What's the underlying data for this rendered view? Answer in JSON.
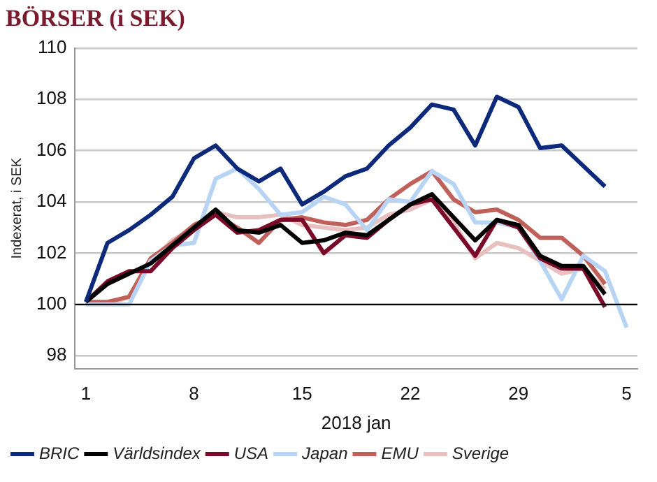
{
  "chart_data": {
    "type": "line",
    "title": "BÖRSER (i SEK)",
    "xlabel": "2018 jan",
    "ylabel": "Indexerat, i SEK",
    "categories": [
      "1",
      null,
      null,
      null,
      null,
      "8",
      null,
      null,
      null,
      null,
      "15",
      null,
      null,
      null,
      null,
      "22",
      null,
      null,
      null,
      null,
      "29",
      null,
      null,
      null,
      null,
      "5"
    ],
    "series": [
      {
        "name": "BRIC",
        "color": "#0d2a7a",
        "values": [
          100.1,
          102.4,
          102.9,
          103.5,
          104.2,
          105.7,
          106.2,
          105.3,
          104.8,
          105.3,
          103.9,
          104.4,
          105.0,
          105.3,
          106.2,
          106.9,
          107.8,
          107.6,
          106.2,
          108.1,
          107.7,
          106.1,
          106.2,
          105.4,
          104.6,
          null
        ]
      },
      {
        "name": "Världsindex",
        "color": "#000000",
        "values": [
          100.1,
          100.8,
          101.2,
          101.6,
          102.3,
          103.0,
          103.7,
          102.9,
          102.8,
          103.1,
          102.4,
          102.5,
          102.8,
          102.7,
          103.3,
          103.9,
          104.3,
          103.4,
          102.5,
          103.3,
          103.1,
          101.9,
          101.5,
          101.5,
          100.4,
          null
        ]
      },
      {
        "name": "USA",
        "color": "#7b0a2a",
        "values": [
          100.1,
          100.9,
          101.3,
          101.3,
          102.2,
          102.9,
          103.5,
          102.8,
          102.9,
          103.3,
          103.3,
          102.0,
          102.7,
          102.6,
          103.3,
          103.9,
          104.1,
          103.0,
          101.9,
          103.3,
          103.0,
          101.8,
          101.4,
          101.4,
          99.9,
          null
        ]
      },
      {
        "name": "Japan",
        "color": "#b8d4f5",
        "values": [
          100.0,
          100.0,
          100.0,
          101.7,
          102.3,
          102.4,
          104.9,
          105.3,
          104.5,
          103.5,
          103.6,
          104.2,
          103.9,
          102.9,
          104.1,
          104.0,
          105.2,
          104.7,
          103.2,
          103.2,
          103.0,
          101.7,
          100.2,
          101.9,
          101.3,
          99.1
        ]
      },
      {
        "name": "EMU",
        "color": "#c0605a",
        "values": [
          100.1,
          100.1,
          100.3,
          101.8,
          102.4,
          103.1,
          103.5,
          103.0,
          102.4,
          103.3,
          103.4,
          103.2,
          103.1,
          103.3,
          104.1,
          104.7,
          105.2,
          104.1,
          103.6,
          103.7,
          103.3,
          102.6,
          102.6,
          101.9,
          100.8,
          null
        ]
      },
      {
        "name": "Sverige",
        "color": "#e8c0c0",
        "values": [
          100.1,
          100.0,
          100.3,
          101.7,
          102.5,
          103.0,
          103.6,
          103.4,
          103.4,
          103.5,
          103.1,
          103.0,
          102.9,
          103.0,
          103.5,
          103.7,
          104.1,
          103.2,
          101.8,
          102.4,
          102.2,
          101.7,
          101.2,
          101.4,
          100.6,
          null
        ]
      }
    ],
    "ylim": [
      97.5,
      110
    ],
    "yticks": [
      98,
      100,
      102,
      104,
      106,
      108,
      110
    ],
    "grid": "y",
    "legend": "bottom",
    "marker": "none",
    "line_style": "solid",
    "ref_lines": [
      {
        "axis": "y",
        "value": 100,
        "color": "#000000"
      }
    ]
  }
}
